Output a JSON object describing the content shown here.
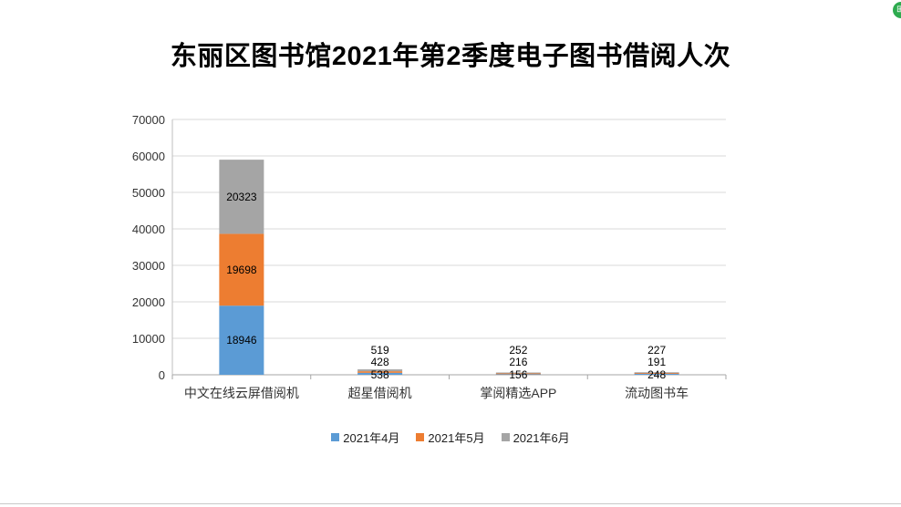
{
  "chart_data": {
    "type": "bar",
    "stacked": true,
    "title": "东丽区图书馆2021年第2季度电子图书借阅人次",
    "categories": [
      "中文在线云屏借阅机",
      "超星借阅机",
      "掌阅精选APP",
      "流动图书车"
    ],
    "series": [
      {
        "name": "2021年4月",
        "color": "#5b9bd5",
        "values": [
          18946,
          538,
          156,
          248
        ]
      },
      {
        "name": "2021年5月",
        "color": "#ed7d31",
        "values": [
          19698,
          428,
          216,
          191
        ]
      },
      {
        "name": "2021年6月",
        "color": "#a5a5a5",
        "values": [
          20323,
          519,
          252,
          227
        ]
      }
    ],
    "ylim": [
      0,
      70000
    ],
    "yticks": [
      "0",
      "10000",
      "20000",
      "30000",
      "40000",
      "50000",
      "60000",
      "70000"
    ],
    "grid": true,
    "legend_position": "bottom",
    "data_labels": true
  }
}
